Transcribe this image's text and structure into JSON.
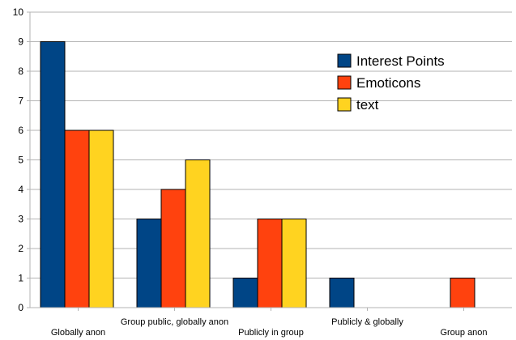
{
  "chart_data": {
    "type": "bar",
    "categories": [
      "Globally anon",
      "Group public, globally anon",
      "Publicly in group",
      "Publicly & globally",
      "Group anon"
    ],
    "series": [
      {
        "name": "Interest Points",
        "color": "#004586",
        "values": [
          9,
          3,
          1,
          1,
          0
        ]
      },
      {
        "name": "Emoticons",
        "color": "#ff420e",
        "values": [
          6,
          4,
          3,
          0,
          1
        ]
      },
      {
        "name": "text",
        "color": "#ffd320",
        "values": [
          6,
          5,
          3,
          0,
          0
        ]
      }
    ],
    "ylim": [
      0,
      10
    ],
    "yticks": [
      0,
      1,
      2,
      3,
      4,
      5,
      6,
      7,
      8,
      9,
      10
    ],
    "grid": true,
    "legend_position": "top-right",
    "title": "",
    "xlabel": "",
    "ylabel": ""
  }
}
